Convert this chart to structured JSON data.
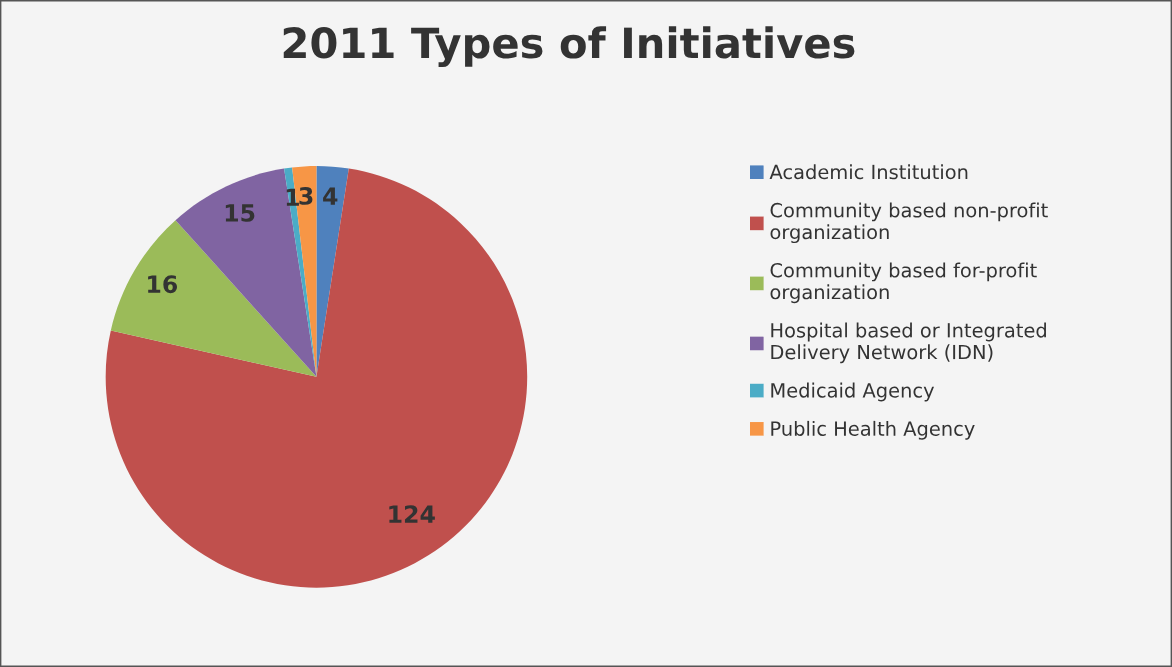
{
  "chart_data": {
    "type": "pie",
    "title": "2011 Types of Initiatives",
    "categories": [
      "Academic Institution",
      "Community based non-profit organization",
      "Community based for-profit organization",
      "Hospital based or Integrated Delivery Network (IDN)",
      "Medicaid Agency",
      "Public Health Agency"
    ],
    "values": [
      4,
      124,
      16,
      15,
      1,
      3
    ],
    "colors": [
      "#4f81bd",
      "#c0504d",
      "#9bbb59",
      "#8064a2",
      "#4bacc6",
      "#f79646"
    ],
    "data_labels": true,
    "legend": "right"
  }
}
